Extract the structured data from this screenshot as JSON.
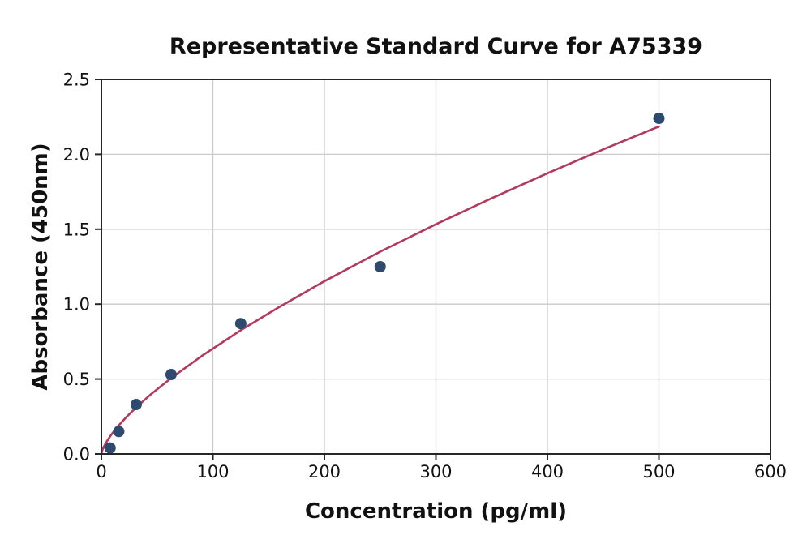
{
  "chart": {
    "colors": {
      "marker": "#2e4a6e",
      "line": "#b13a5e",
      "grid": "#c9c9c9",
      "spine": "#262626",
      "text": "#111111",
      "background": "#ffffff"
    }
  },
  "chart_data": {
    "type": "scatter",
    "title": "Representative Standard Curve for A75339",
    "xlabel": "Concentration (pg/ml)",
    "ylabel": "Absorbance (450nm)",
    "xlim": [
      0,
      600
    ],
    "ylim": [
      0,
      2.5
    ],
    "grid": true,
    "legend": false,
    "x_ticks": [
      0,
      100,
      200,
      300,
      400,
      500,
      600
    ],
    "x_tick_labels": [
      "0",
      "100",
      "200",
      "300",
      "400",
      "500",
      "600"
    ],
    "y_ticks": [
      0,
      0.5,
      1.0,
      1.5,
      2.0,
      2.5
    ],
    "y_tick_labels": [
      "0.0",
      "0.5",
      "1.0",
      "1.5",
      "2.0",
      "2.5"
    ],
    "points": {
      "name": "standards",
      "x": [
        7.8,
        15.6,
        31.25,
        62.5,
        125,
        250,
        500
      ],
      "y": [
        0.04,
        0.15,
        0.33,
        0.53,
        0.87,
        1.25,
        2.24
      ]
    },
    "fit_curve": {
      "name": "power-fit",
      "x": [
        0,
        1,
        2,
        4,
        7.8,
        12,
        15.6,
        22,
        31.25,
        45,
        62.5,
        90,
        125,
        160,
        200,
        250,
        300,
        350,
        400,
        450,
        500
      ],
      "y": [
        0,
        0.028,
        0.045,
        0.073,
        0.117,
        0.159,
        0.191,
        0.243,
        0.311,
        0.402,
        0.506,
        0.654,
        0.826,
        0.983,
        1.153,
        1.35,
        1.533,
        1.707,
        1.873,
        2.033,
        2.186
      ]
    }
  }
}
